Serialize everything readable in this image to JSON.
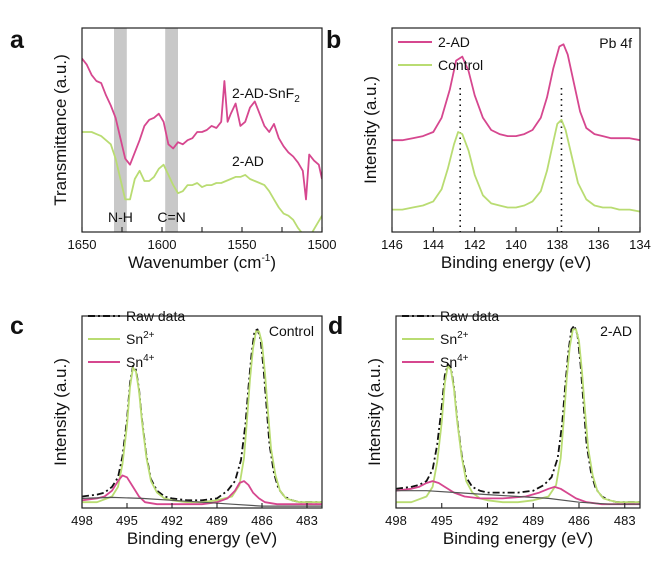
{
  "colors": {
    "pink": "#d6478f",
    "green": "#b9dc72",
    "raw": "#111111",
    "background_fit": "#555555",
    "band": "#c8c8c8"
  },
  "chart_data": [
    {
      "panel": "a",
      "type": "line",
      "xlabel": "Wavenumber (cm",
      "xlabel_sup": "-1",
      "xlabel_close": ")",
      "ylabel": "Transmittance (a.u.)",
      "xlim": [
        1650,
        1500
      ],
      "x_ticks": [
        1650,
        1625,
        1600,
        1575,
        1550,
        1525,
        1500
      ],
      "x_tick_labels": [
        "1650",
        "",
        "1600",
        "",
        "1550",
        "",
        "1500"
      ],
      "ylim": [
        0,
        10
      ],
      "grid": false,
      "shaded_bands": [
        {
          "from": 1630,
          "to": 1622,
          "label": "N-H"
        },
        {
          "from": 1598,
          "to": 1590,
          "label": "C=N"
        }
      ],
      "series": [
        {
          "name": "2-AD-SnF",
          "name_sub": "2",
          "color": "#d6478f",
          "x": [
            1650,
            1647,
            1644,
            1641,
            1638,
            1635,
            1632,
            1629,
            1626,
            1623,
            1620,
            1617,
            1614,
            1611,
            1608,
            1605,
            1602,
            1599,
            1596,
            1593,
            1590,
            1587,
            1584,
            1581,
            1578,
            1575,
            1572,
            1569,
            1566,
            1563,
            1561,
            1559,
            1557,
            1554,
            1551,
            1548,
            1545,
            1542,
            1539,
            1536,
            1533,
            1530,
            1527,
            1524,
            1521,
            1518,
            1515,
            1512,
            1510,
            1508,
            1505,
            1502,
            1500
          ],
          "y": [
            8.5,
            8.2,
            7.7,
            7.4,
            7.3,
            6.7,
            6.2,
            5.6,
            4.6,
            3.6,
            3.3,
            3.9,
            4.5,
            5.2,
            5.5,
            5.6,
            5.8,
            5.4,
            4.3,
            4.1,
            4.4,
            4.3,
            4.5,
            4.6,
            4.9,
            4.9,
            5.0,
            5.2,
            5.1,
            5.4,
            7.4,
            5.4,
            5.8,
            6.3,
            5.2,
            5.4,
            6.1,
            6.4,
            5.8,
            5.2,
            4.9,
            5.3,
            4.6,
            4.2,
            3.9,
            3.7,
            3.4,
            3.0,
            1.6,
            3.8,
            3.5,
            3.3,
            2.6
          ]
        },
        {
          "name": "2-AD",
          "color": "#b9dc72",
          "x": [
            1650,
            1647,
            1644,
            1641,
            1638,
            1635,
            1632,
            1629,
            1626,
            1623,
            1620,
            1617,
            1614,
            1611,
            1608,
            1605,
            1602,
            1599,
            1596,
            1593,
            1590,
            1587,
            1584,
            1581,
            1578,
            1575,
            1572,
            1569,
            1566,
            1563,
            1560,
            1557,
            1554,
            1551,
            1548,
            1545,
            1542,
            1539,
            1536,
            1533,
            1530,
            1527,
            1524,
            1521,
            1518,
            1515,
            1512,
            1509,
            1506,
            1503,
            1500
          ],
          "y": [
            4.9,
            4.9,
            4.9,
            4.8,
            4.7,
            4.5,
            4.3,
            3.6,
            2.6,
            1.6,
            1.6,
            2.6,
            3.0,
            2.5,
            2.5,
            2.7,
            3.1,
            3.3,
            2.8,
            2.3,
            1.9,
            2.0,
            2.3,
            2.3,
            2.4,
            2.2,
            2.3,
            2.3,
            2.4,
            2.4,
            2.5,
            2.6,
            2.7,
            2.7,
            2.8,
            2.6,
            2.5,
            2.4,
            2.3,
            2.0,
            1.6,
            1.2,
            0.9,
            0.8,
            0.6,
            0.2,
            -0.1,
            -0.2,
            0.0,
            0.4,
            0.8
          ]
        }
      ]
    },
    {
      "panel": "b",
      "type": "line",
      "annotation": "Pb 4f",
      "xlabel": "Binding energy (eV)",
      "ylabel": "Intensity (a.u.)",
      "xlim": [
        146,
        134
      ],
      "x_ticks": [
        146,
        144,
        142,
        140,
        138,
        136,
        134
      ],
      "ylim": [
        0,
        10
      ],
      "grid": false,
      "legend": "top-left",
      "reference_lines_x": [
        142.7,
        137.8
      ],
      "series": [
        {
          "name": "2-AD",
          "color": "#d6478f",
          "x": [
            146,
            145.5,
            145,
            144.5,
            144,
            143.6,
            143.2,
            142.9,
            142.6,
            142.3,
            142.0,
            141.6,
            141.2,
            140.8,
            140.4,
            140.0,
            139.6,
            139.2,
            138.8,
            138.5,
            138.2,
            137.9,
            137.7,
            137.5,
            137.2,
            136.9,
            136.6,
            136.2,
            135.8,
            135.4,
            135,
            134.5,
            134
          ],
          "y": [
            4.5,
            4.5,
            4.6,
            4.7,
            4.9,
            5.6,
            7.0,
            8.4,
            8.6,
            7.9,
            6.7,
            5.6,
            5.0,
            4.8,
            4.7,
            4.7,
            4.8,
            5.0,
            5.6,
            6.6,
            8.0,
            9.1,
            9.2,
            8.7,
            7.3,
            5.9,
            5.1,
            4.8,
            4.7,
            4.6,
            4.6,
            4.6,
            4.5
          ]
        },
        {
          "name": "Control",
          "color": "#b9dc72",
          "x": [
            146,
            145.5,
            145,
            144.5,
            144,
            143.6,
            143.3,
            143.0,
            142.8,
            142.6,
            142.3,
            142.0,
            141.6,
            141.2,
            140.8,
            140.4,
            140.0,
            139.6,
            139.2,
            138.8,
            138.5,
            138.2,
            138.0,
            137.8,
            137.6,
            137.3,
            137.0,
            136.6,
            136.2,
            135.8,
            135.4,
            135,
            134.5,
            134
          ],
          "y": [
            1.1,
            1.1,
            1.2,
            1.3,
            1.5,
            2.1,
            3.1,
            4.3,
            4.9,
            4.8,
            4.0,
            2.8,
            1.8,
            1.4,
            1.3,
            1.2,
            1.2,
            1.3,
            1.5,
            2.0,
            3.0,
            4.4,
            5.3,
            5.5,
            5.0,
            3.7,
            2.4,
            1.6,
            1.3,
            1.2,
            1.2,
            1.1,
            1.1,
            1.0
          ]
        }
      ]
    },
    {
      "panel": "c",
      "type": "line",
      "annotation": "Control",
      "xlabel": "Binding energy (eV)",
      "ylabel": "Intensity (a.u.)",
      "xlim": [
        498,
        482
      ],
      "x_ticks": [
        498,
        495,
        492,
        489,
        486,
        483
      ],
      "ylim": [
        0,
        10
      ],
      "grid": false,
      "legend": "top-left",
      "series": [
        {
          "name": "Raw data",
          "style": "dash-dot",
          "color": "#111111",
          "x": [
            498,
            497,
            496.5,
            496,
            495.6,
            495.3,
            495.0,
            494.8,
            494.6,
            494.4,
            494.2,
            494.0,
            493.7,
            493.4,
            493.0,
            492.5,
            492.0,
            491.0,
            490.0,
            489.0,
            488.3,
            487.8,
            487.4,
            487.1,
            486.9,
            486.7,
            486.5,
            486.3,
            486.1,
            485.9,
            485.7,
            485.5,
            485.2,
            484.9,
            484.5,
            484.0,
            483.5,
            483,
            482.5,
            482
          ],
          "y": [
            0.6,
            0.7,
            0.8,
            1.1,
            1.6,
            2.7,
            4.6,
            6.5,
            7.4,
            7.2,
            6.2,
            4.6,
            2.7,
            1.5,
            0.9,
            0.6,
            0.5,
            0.4,
            0.4,
            0.5,
            0.9,
            1.4,
            2.5,
            4.4,
            6.3,
            8.0,
            9.2,
            9.3,
            8.8,
            7.3,
            5.3,
            3.3,
            1.8,
            1.0,
            0.6,
            0.4,
            0.3,
            0.3,
            0.3,
            0.3
          ]
        },
        {
          "name": "Sn",
          "name_sup": "2+",
          "color": "#b9dc72",
          "x": [
            498,
            497,
            496,
            495.6,
            495.3,
            495.0,
            494.8,
            494.6,
            494.4,
            494.2,
            494.0,
            493.7,
            493.4,
            493.0,
            492.5,
            492.0,
            491.0,
            490.0,
            489.0,
            488.0,
            487.5,
            487.2,
            487.0,
            486.8,
            486.6,
            486.4,
            486.2,
            486.0,
            485.8,
            485.6,
            485.4,
            485.1,
            484.8,
            484.4,
            484.0,
            483.5,
            483,
            482
          ],
          "y": [
            0.3,
            0.3,
            0.6,
            1.1,
            2.3,
            4.3,
            6.3,
            7.3,
            7.1,
            6.1,
            4.5,
            2.6,
            1.4,
            0.8,
            0.5,
            0.4,
            0.3,
            0.3,
            0.4,
            0.6,
            1.2,
            2.6,
            4.6,
            6.7,
            8.3,
            9.2,
            9.2,
            8.6,
            7.0,
            5.0,
            3.1,
            1.7,
            0.9,
            0.5,
            0.4,
            0.3,
            0.3,
            0.3
          ]
        },
        {
          "name": "Sn",
          "name_sup": "4+",
          "color": "#d6478f",
          "x": [
            498,
            497,
            496.5,
            496.0,
            495.6,
            495.3,
            495.0,
            494.6,
            494.2,
            493.8,
            493,
            492,
            490,
            489.0,
            488.3,
            487.8,
            487.5,
            487.2,
            486.9,
            486.6,
            486.2,
            485.8,
            485,
            484,
            482
          ],
          "y": [
            0.4,
            0.5,
            0.6,
            0.9,
            1.4,
            1.7,
            1.6,
            1.1,
            0.6,
            0.3,
            0.2,
            0.2,
            0.2,
            0.3,
            0.5,
            0.9,
            1.3,
            1.4,
            1.2,
            0.8,
            0.5,
            0.3,
            0.2,
            0.2,
            0.2
          ]
        },
        {
          "name": "",
          "role": "background",
          "color": "#555555",
          "x": [
            498,
            496,
            494,
            492,
            490,
            488,
            486,
            484,
            482
          ],
          "y": [
            0.5,
            0.55,
            0.5,
            0.4,
            0.3,
            0.2,
            0.1,
            0.1,
            0.1
          ]
        }
      ]
    },
    {
      "panel": "d",
      "type": "line",
      "annotation": "2-AD",
      "xlabel": "Binding energy (eV)",
      "ylabel": "Intensity (a.u.)",
      "xlim": [
        498,
        482
      ],
      "x_ticks": [
        498,
        495,
        492,
        489,
        486,
        483
      ],
      "ylim": [
        0,
        10
      ],
      "grid": false,
      "legend": "top-left",
      "series": [
        {
          "name": "Raw data",
          "style": "dash-dot",
          "color": "#111111",
          "x": [
            498,
            497,
            496.5,
            496,
            495.6,
            495.3,
            495.0,
            494.8,
            494.6,
            494.4,
            494.2,
            494.0,
            493.7,
            493.4,
            493.0,
            492.5,
            492.0,
            491.0,
            490.0,
            489.0,
            488.3,
            487.8,
            487.4,
            487.1,
            486.9,
            486.7,
            486.5,
            486.3,
            486.1,
            485.9,
            485.7,
            485.5,
            485.2,
            484.9,
            484.5,
            484.0,
            483.5,
            483,
            482.5,
            482
          ],
          "y": [
            1.0,
            1.1,
            1.2,
            1.4,
            2.0,
            3.3,
            5.3,
            6.9,
            7.5,
            7.3,
            6.3,
            4.7,
            2.8,
            1.6,
            1.1,
            0.9,
            0.8,
            0.8,
            0.8,
            0.9,
            1.2,
            1.6,
            2.6,
            4.4,
            6.4,
            8.1,
            9.3,
            9.5,
            9.0,
            7.5,
            5.4,
            3.3,
            1.8,
            1.0,
            0.6,
            0.4,
            0.3,
            0.3,
            0.3,
            0.3
          ]
        },
        {
          "name": "Sn",
          "name_sup": "2+",
          "color": "#b9dc72",
          "x": [
            498,
            497,
            496,
            495.6,
            495.3,
            495.0,
            494.8,
            494.6,
            494.4,
            494.2,
            494.0,
            493.7,
            493.4,
            493.0,
            492.5,
            492.0,
            491.0,
            490.0,
            489.0,
            488.0,
            487.5,
            487.2,
            487.0,
            486.8,
            486.6,
            486.4,
            486.2,
            486.0,
            485.8,
            485.6,
            485.4,
            485.1,
            484.8,
            484.4,
            484.0,
            483.5,
            483,
            482
          ],
          "y": [
            0.3,
            0.3,
            0.6,
            1.1,
            2.4,
            4.5,
            6.5,
            7.4,
            7.2,
            6.2,
            4.6,
            2.7,
            1.4,
            0.8,
            0.5,
            0.4,
            0.3,
            0.3,
            0.4,
            0.6,
            1.2,
            2.6,
            4.6,
            6.8,
            8.4,
            9.3,
            9.3,
            8.7,
            7.1,
            5.0,
            3.1,
            1.7,
            0.9,
            0.5,
            0.4,
            0.3,
            0.3,
            0.3
          ]
        },
        {
          "name": "Sn",
          "name_sup": "4+",
          "color": "#d6478f",
          "x": [
            498,
            497,
            496.5,
            496.0,
            495.6,
            495.2,
            494.8,
            494.2,
            493.5,
            492.5,
            491,
            489.5,
            488.6,
            488.0,
            487.6,
            487.2,
            486.8,
            486.2,
            485.5,
            484.5,
            482
          ],
          "y": [
            0.9,
            1.0,
            1.1,
            1.3,
            1.4,
            1.3,
            1.1,
            0.8,
            0.6,
            0.5,
            0.5,
            0.6,
            0.8,
            1.0,
            1.1,
            1.0,
            0.8,
            0.5,
            0.3,
            0.2,
            0.2
          ]
        },
        {
          "name": "",
          "role": "background",
          "color": "#555555",
          "x": [
            498,
            496,
            494,
            492,
            490,
            488,
            486,
            484,
            482
          ],
          "y": [
            0.9,
            0.9,
            0.8,
            0.7,
            0.6,
            0.5,
            0.3,
            0.2,
            0.2
          ]
        }
      ]
    }
  ]
}
